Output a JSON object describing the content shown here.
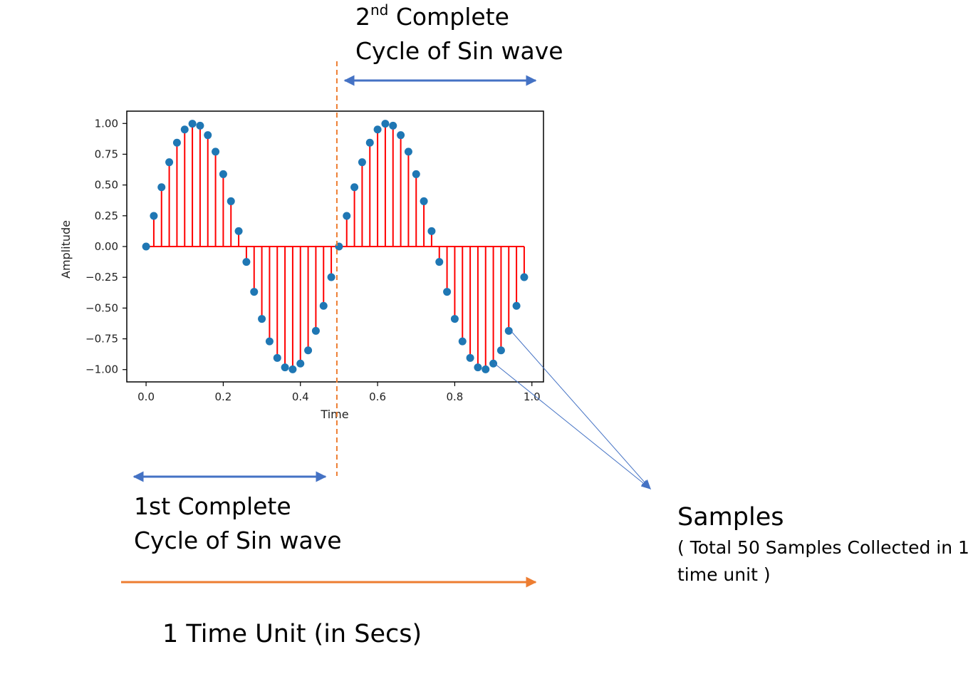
{
  "annotations": {
    "second_cycle": {
      "ordinal": "2",
      "sup": "nd",
      "line1_rest": " Complete",
      "line2": "Cycle of Sin wave"
    },
    "first_cycle": {
      "line1": "1st Complete",
      "line2": "Cycle of Sin wave"
    },
    "samples": {
      "title": "Samples",
      "note_line1": "( Total 50 Samples Collected in 1",
      "note_line2": "time unit )"
    },
    "time_unit": "1 Time Unit (in Secs)"
  },
  "colors": {
    "stem": "#ff0000",
    "marker": "#1f77b4",
    "cycle_arrow": "#4472c4",
    "time_arrow": "#ed7d31",
    "divider": "#ed7d31",
    "frame": "#000000"
  },
  "chart_data": {
    "type": "stem",
    "title": "",
    "xlabel": "Time",
    "ylabel": "Amplitude",
    "xlim": [
      -0.05,
      1.03
    ],
    "ylim": [
      -1.1,
      1.1
    ],
    "xticks": [
      0.0,
      0.2,
      0.4,
      0.6,
      0.8,
      1.0
    ],
    "xtick_labels": [
      "0.0",
      "0.2",
      "0.4",
      "0.6",
      "0.8",
      "1.0"
    ],
    "yticks": [
      1.0,
      0.75,
      0.5,
      0.25,
      0.0,
      -0.25,
      -0.5,
      -0.75,
      -1.0
    ],
    "ytick_labels": [
      "1.00",
      "0.75",
      "0.50",
      "0.25",
      "0.00",
      "−0.25",
      "−0.50",
      "−0.75",
      "−1.00"
    ],
    "grid": false,
    "cycle_boundary_x": 0.5,
    "series": [
      {
        "x": [
          0.0,
          0.02,
          0.04,
          0.06,
          0.08,
          0.1,
          0.12,
          0.14,
          0.16,
          0.18,
          0.2,
          0.22,
          0.24,
          0.26,
          0.28,
          0.3,
          0.32,
          0.34,
          0.36,
          0.38,
          0.4,
          0.42,
          0.44,
          0.46,
          0.48,
          0.5,
          0.52,
          0.54,
          0.56,
          0.58,
          0.6,
          0.62,
          0.64,
          0.66,
          0.68,
          0.7,
          0.72,
          0.74,
          0.76,
          0.78,
          0.8,
          0.82,
          0.84,
          0.86,
          0.88,
          0.9,
          0.92,
          0.94,
          0.96,
          0.98
        ],
        "y": [
          0.0,
          0.249,
          0.482,
          0.685,
          0.844,
          0.951,
          0.998,
          0.982,
          0.905,
          0.771,
          0.588,
          0.368,
          0.125,
          -0.125,
          -0.368,
          -0.588,
          -0.771,
          -0.905,
          -0.982,
          -0.998,
          -0.951,
          -0.844,
          -0.685,
          -0.482,
          -0.249,
          0.0,
          0.249,
          0.482,
          0.685,
          0.844,
          0.951,
          0.998,
          0.982,
          0.905,
          0.771,
          0.588,
          0.368,
          0.125,
          -0.125,
          -0.368,
          -0.588,
          -0.771,
          -0.905,
          -0.982,
          -0.998,
          -0.951,
          -0.844,
          -0.685,
          -0.482,
          -0.249
        ]
      }
    ]
  }
}
